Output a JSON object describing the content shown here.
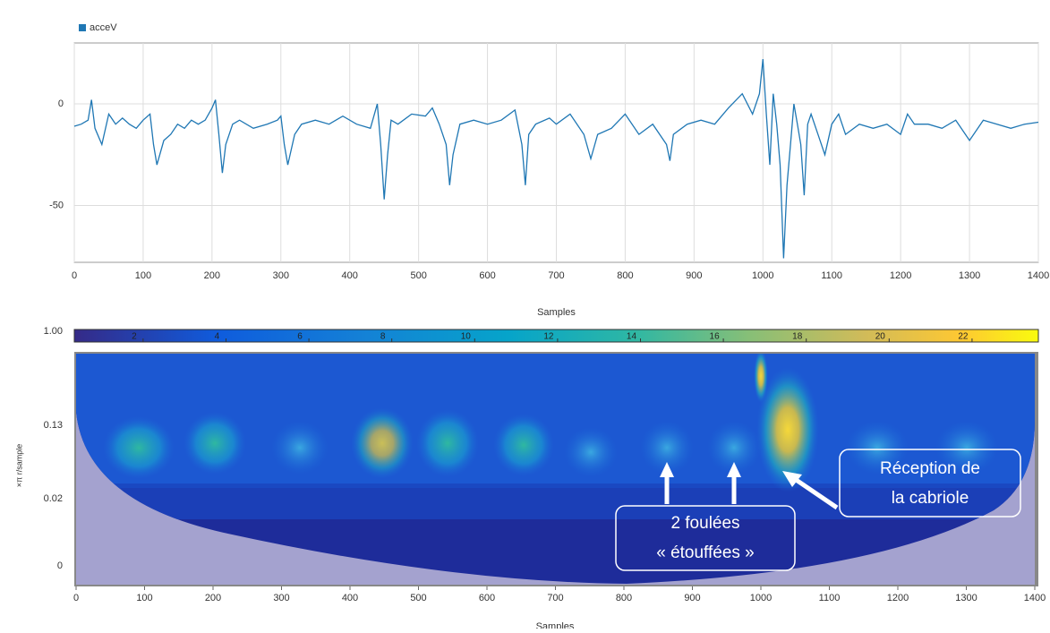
{
  "chart_data": [
    {
      "type": "line",
      "xlabel": "Samples",
      "series": [
        {
          "name": "acceV",
          "color": "#1f77b4"
        }
      ],
      "x": [
        0,
        10,
        20,
        25,
        30,
        40,
        50,
        60,
        70,
        80,
        90,
        100,
        110,
        115,
        120,
        130,
        140,
        150,
        160,
        170,
        180,
        190,
        200,
        205,
        210,
        215,
        220,
        230,
        240,
        260,
        280,
        295,
        300,
        305,
        310,
        320,
        330,
        350,
        370,
        390,
        410,
        430,
        440,
        445,
        450,
        455,
        460,
        470,
        490,
        510,
        520,
        530,
        540,
        545,
        550,
        560,
        580,
        600,
        620,
        640,
        650,
        655,
        660,
        670,
        690,
        700,
        720,
        740,
        750,
        760,
        780,
        800,
        820,
        840,
        860,
        865,
        870,
        890,
        910,
        930,
        950,
        970,
        985,
        995,
        1000,
        1005,
        1010,
        1015,
        1020,
        1025,
        1030,
        1035,
        1040,
        1045,
        1050,
        1055,
        1060,
        1065,
        1070,
        1080,
        1090,
        1100,
        1110,
        1120,
        1140,
        1160,
        1180,
        1200,
        1210,
        1220,
        1240,
        1260,
        1280,
        1300,
        1320,
        1340,
        1360,
        1380,
        1400
      ],
      "values": [
        -11,
        -10,
        -8,
        2,
        -12,
        -20,
        -5,
        -10,
        -7,
        -10,
        -12,
        -8,
        -5,
        -20,
        -30,
        -18,
        -15,
        -10,
        -12,
        -8,
        -10,
        -8,
        -2,
        2,
        -15,
        -34,
        -20,
        -10,
        -8,
        -12,
        -10,
        -8,
        -6,
        -20,
        -30,
        -15,
        -10,
        -8,
        -10,
        -6,
        -10,
        -12,
        0,
        -20,
        -47,
        -25,
        -8,
        -10,
        -5,
        -6,
        -2,
        -10,
        -20,
        -40,
        -25,
        -10,
        -8,
        -10,
        -8,
        -3,
        -20,
        -40,
        -15,
        -10,
        -7,
        -10,
        -5,
        -15,
        -27,
        -15,
        -12,
        -5,
        -15,
        -10,
        -20,
        -28,
        -15,
        -10,
        -8,
        -10,
        -2,
        5,
        -5,
        5,
        22,
        -5,
        -30,
        5,
        -10,
        -30,
        -76,
        -40,
        -20,
        0,
        -10,
        -20,
        -45,
        -10,
        -5,
        -15,
        -25,
        -10,
        -5,
        -15,
        -10,
        -12,
        -10,
        -15,
        -5,
        -10,
        -10,
        -12,
        -8,
        -18,
        -8,
        -10,
        -12,
        -10,
        -9
      ],
      "xlim": [
        0,
        1400
      ],
      "xticks": [
        0,
        100,
        200,
        300,
        400,
        500,
        600,
        700,
        800,
        900,
        1000,
        1100,
        1200,
        1300,
        1400
      ],
      "ylim": [
        -78,
        30
      ],
      "yticks": [
        -50,
        0
      ],
      "grid": true
    },
    {
      "type": "heatmap",
      "xlabel": "Samples",
      "ylabel": "×π r/sample",
      "xlim": [
        0,
        1400
      ],
      "xticks": [
        0,
        100,
        200,
        300,
        400,
        500,
        600,
        700,
        800,
        900,
        1000,
        1100,
        1200,
        1300,
        1400
      ],
      "ytick_labels": [
        "1.00",
        "0.13",
        "0.02",
        "0"
      ],
      "clim": [
        0.34,
        23.6
      ],
      "cticks": [
        2,
        4,
        6,
        8,
        10,
        12,
        14,
        16,
        18,
        20,
        22
      ],
      "annotations": [
        "Réception de la cabriole",
        "2 foulées « étouffées »"
      ]
    }
  ]
}
